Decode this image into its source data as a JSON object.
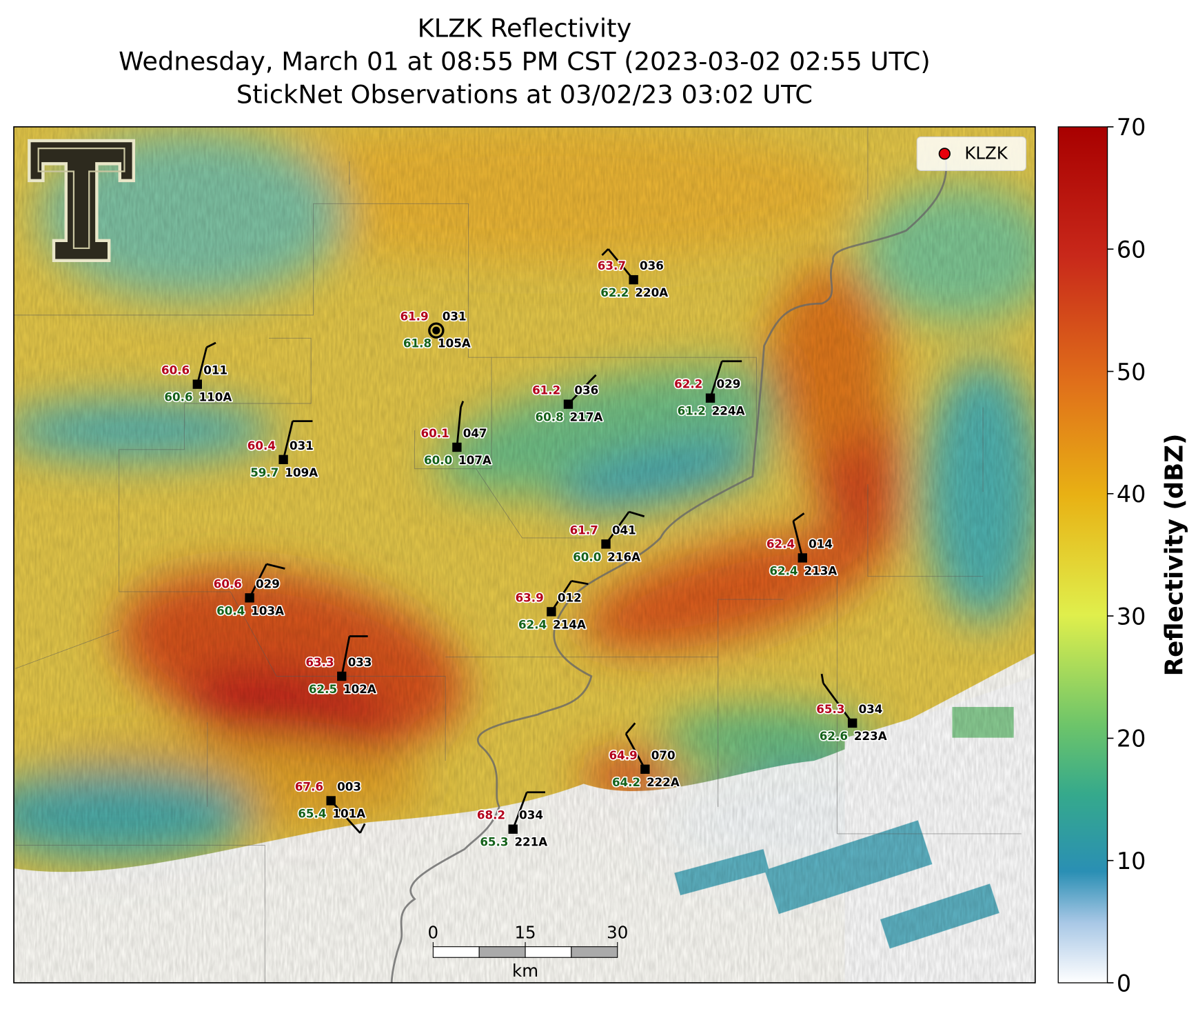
{
  "header": {
    "title": "KLZK Reflectivity",
    "subtitle": "Wednesday, March 01 at 08:55 PM CST (2023-03-02 02:55 UTC)",
    "observations": "StickNet Observations at 03/02/23 03:02 UTC"
  },
  "legend": {
    "label": "KLZK",
    "color": "#e8000b"
  },
  "colorbar": {
    "label": "Reflectivity (dBZ)",
    "lim": [
      0,
      70
    ],
    "ticks": [
      0,
      10,
      20,
      30,
      40,
      50,
      60,
      70
    ]
  },
  "scale_bar": {
    "ticks": [
      0,
      15,
      30
    ],
    "unit": "km"
  },
  "stations": [
    {
      "id": "110A",
      "temperature": "60.6",
      "dewpoint": "60.6",
      "code": "011"
    },
    {
      "id": "109A",
      "temperature": "60.4",
      "dewpoint": "59.7",
      "code": "031"
    },
    {
      "id": "105A",
      "temperature": "61.9",
      "dewpoint": "61.8",
      "code": "031"
    },
    {
      "id": "107A",
      "temperature": "60.1",
      "dewpoint": "60.0",
      "code": "047"
    },
    {
      "id": "217A",
      "temperature": "61.2",
      "dewpoint": "60.8",
      "code": "036"
    },
    {
      "id": "220A",
      "temperature": "63.7",
      "dewpoint": "62.2",
      "code": "036"
    },
    {
      "id": "224A",
      "temperature": "62.2",
      "dewpoint": "61.2",
      "code": "029"
    },
    {
      "id": "216A",
      "temperature": "61.7",
      "dewpoint": "60.0",
      "code": "041"
    },
    {
      "id": "213A",
      "temperature": "62.4",
      "dewpoint": "62.4",
      "code": "014"
    },
    {
      "id": "103A",
      "temperature": "60.6",
      "dewpoint": "60.4",
      "code": "029"
    },
    {
      "id": "214A",
      "temperature": "63.9",
      "dewpoint": "62.4",
      "code": "012"
    },
    {
      "id": "102A",
      "temperature": "63.3",
      "dewpoint": "62.5",
      "code": "033"
    },
    {
      "id": "223A",
      "temperature": "65.3",
      "dewpoint": "62.6",
      "code": "034"
    },
    {
      "id": "222A",
      "temperature": "64.9",
      "dewpoint": "64.2",
      "code": "070"
    },
    {
      "id": "101A",
      "temperature": "67.6",
      "dewpoint": "65.4",
      "code": "003"
    },
    {
      "id": "221A",
      "temperature": "68.2",
      "dewpoint": "65.3",
      "code": "034"
    }
  ]
}
